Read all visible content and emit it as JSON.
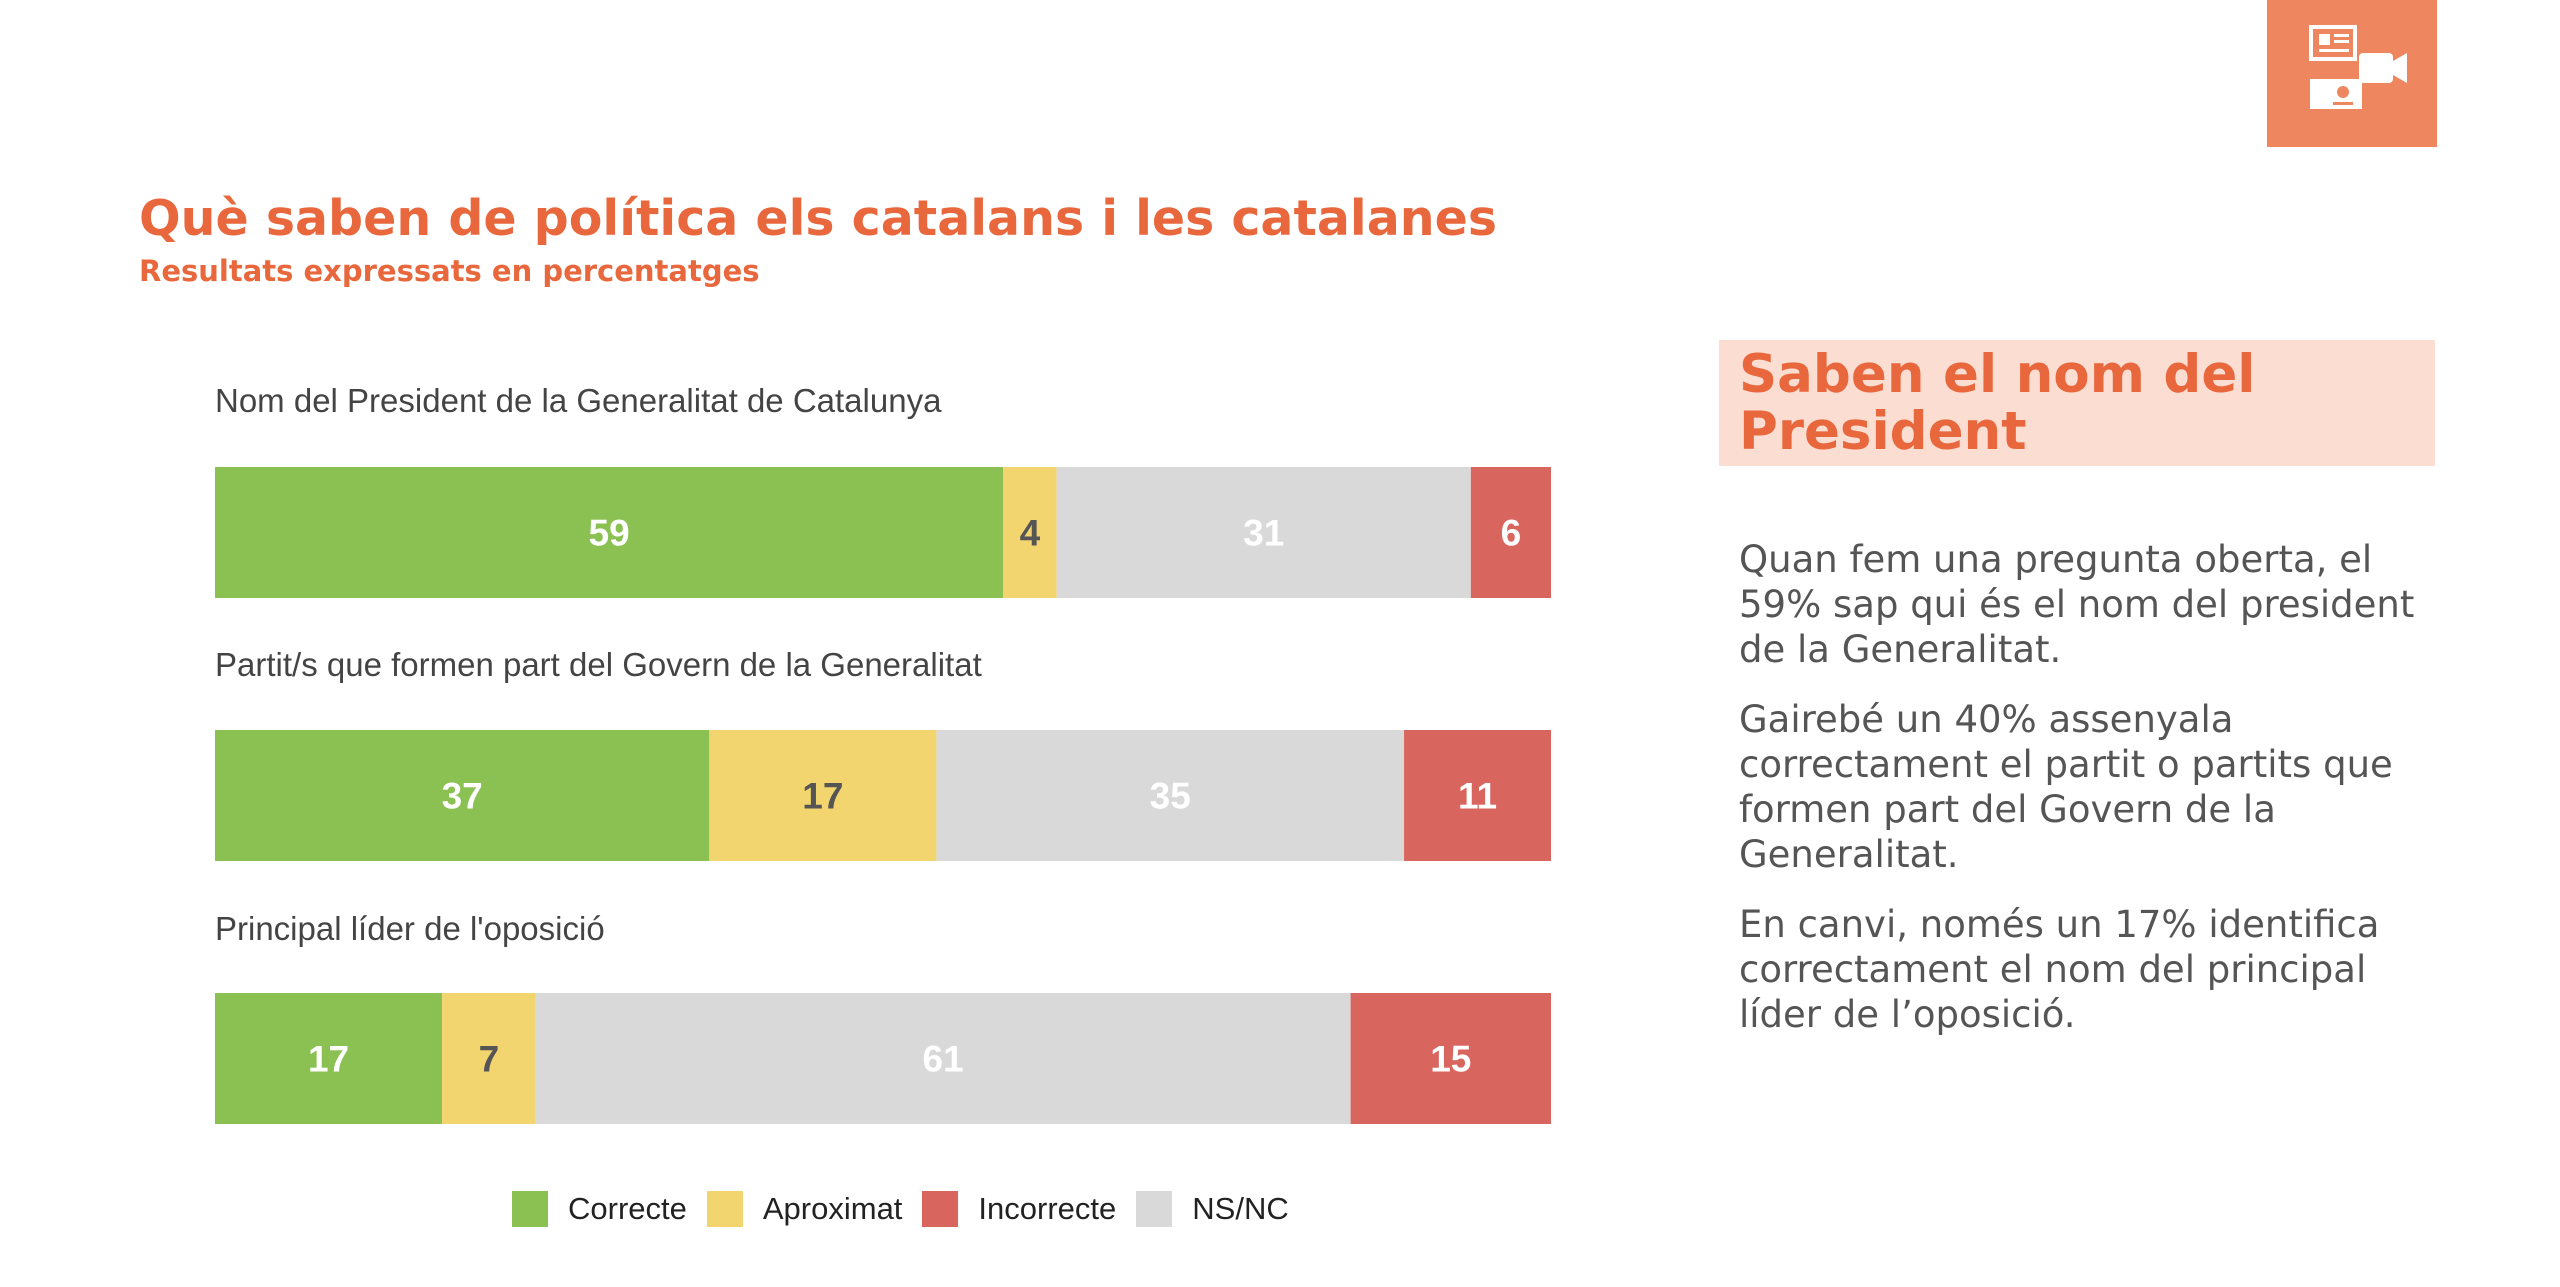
{
  "header": {
    "title": "Què saben de política els catalans i les catalanes",
    "subtitle": "Resultats expressats en percentatges",
    "corner_icon": "media-icon"
  },
  "colors": {
    "accent": "#e8673c",
    "correcte": "#8bc053",
    "aproximat": "#f2d56e",
    "incorrecte": "#d9655f",
    "nsnc": "#d9d9d9"
  },
  "chart_data": {
    "type": "bar",
    "orientation": "horizontal",
    "stacked": true,
    "normalized_to": 100,
    "categories": [
      "Nom del President de la Generalitat de Catalunya",
      "Partit/s que formen part del Govern de la Generalitat",
      "Principal líder de l'oposició"
    ],
    "series": [
      {
        "name": "Correcte",
        "values": [
          59,
          37,
          17
        ],
        "color": "#8bc053"
      },
      {
        "name": "Aproximat",
        "values": [
          4,
          17,
          7
        ],
        "color": "#f2d56e"
      },
      {
        "name": "NS/NC",
        "values": [
          31,
          35,
          61
        ],
        "color": "#d9d9d9"
      },
      {
        "name": "Incorrecte",
        "values": [
          6,
          11,
          15
        ],
        "color": "#d9655f"
      }
    ],
    "legend": {
      "position": "bottom",
      "entries": [
        "Correcte",
        "Aproximat",
        "Incorrecte",
        "NS/NC"
      ]
    },
    "data_labels": true,
    "grid": false
  },
  "sidebar": {
    "heading": "Saben el nom del President",
    "paragraphs": [
      "Quan fem una pregunta oberta, el 59% sap qui és el nom del president de la Generalitat.",
      "Gairebé un 40% assenyala correctament el partit o partits que formen part del Govern de la Generalitat.",
      "En canvi, només un 17% identifica correctament el nom del principal líder de l’oposició."
    ]
  }
}
